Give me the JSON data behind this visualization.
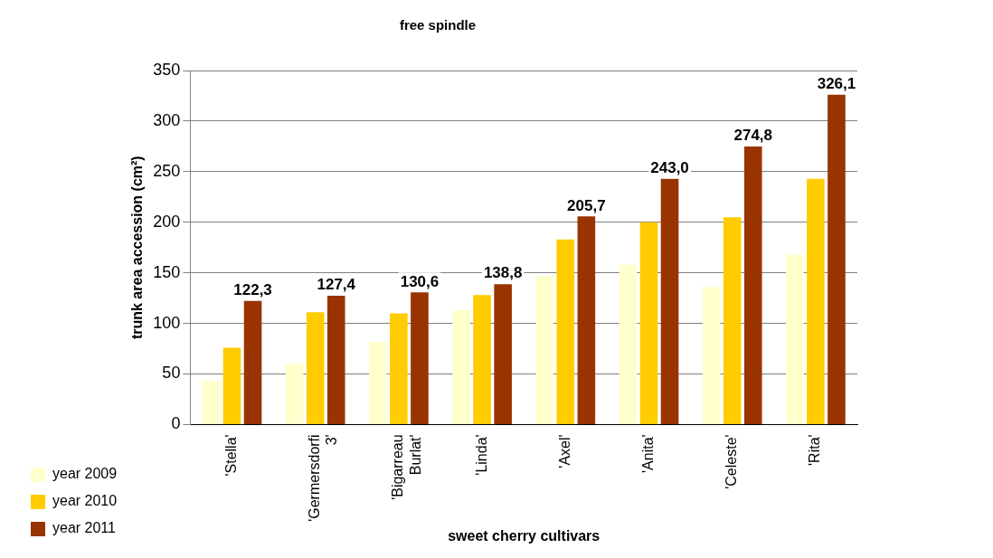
{
  "chart_data": {
    "type": "bar",
    "title": "free spindle",
    "xlabel": "sweet cherry cultivars",
    "ylabel": "trunk area accession (cm²)",
    "categories": [
      "'Stella'",
      "'Germersdorfi 3'",
      "'Bigarreau Burlat'",
      "'Linda'",
      "'Axel'",
      "'Anita'",
      "'Celeste'",
      "'Rita'"
    ],
    "series": [
      {
        "name": "year 2009",
        "color": "#ffffcc",
        "values": [
          43,
          60,
          82,
          113,
          147,
          158,
          136,
          168
        ]
      },
      {
        "name": "year 2010",
        "color": "#ffcc00",
        "values": [
          76,
          111,
          110,
          128,
          183,
          200,
          205,
          243
        ]
      },
      {
        "name": "year 2011",
        "color": "#993300",
        "values": [
          122.3,
          127.4,
          130.6,
          138.8,
          205.7,
          243.0,
          274.8,
          326.1
        ],
        "value_labels": [
          "122,3",
          "127,4",
          "130,6",
          "138,8",
          "205,7",
          "243,0",
          "274,8",
          "326,1"
        ]
      }
    ],
    "ylim": [
      0,
      350
    ],
    "yticks": [
      0,
      50,
      100,
      150,
      200,
      250,
      300,
      350
    ],
    "grid": "y",
    "legend": "bottom left"
  }
}
